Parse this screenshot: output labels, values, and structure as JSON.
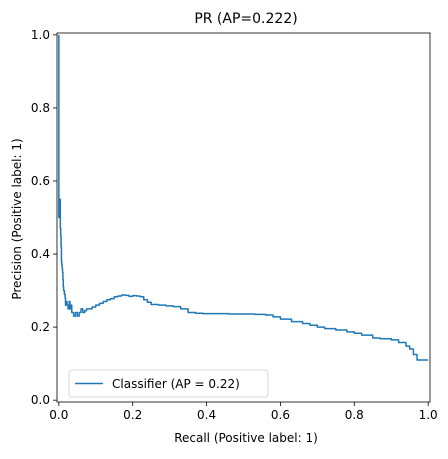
{
  "chart_data": {
    "type": "line",
    "title": "PR (AP=0.222)",
    "xlabel": "Recall (Positive label: 1)",
    "ylabel": "Precision (Positive label: 1)",
    "xlim": [
      -0.005,
      1.005
    ],
    "ylim": [
      -0.005,
      1.005
    ],
    "xticks": [
      {
        "value": 0.0,
        "label": "0.0"
      },
      {
        "value": 0.2,
        "label": "0.2"
      },
      {
        "value": 0.4,
        "label": "0.4"
      },
      {
        "value": 0.6,
        "label": "0.6"
      },
      {
        "value": 0.8,
        "label": "0.8"
      },
      {
        "value": 1.0,
        "label": "1.0"
      }
    ],
    "yticks": [
      {
        "value": 0.0,
        "label": "0.0"
      },
      {
        "value": 0.2,
        "label": "0.2"
      },
      {
        "value": 0.4,
        "label": "0.4"
      },
      {
        "value": 0.6,
        "label": "0.6"
      },
      {
        "value": 0.8,
        "label": "0.8"
      },
      {
        "value": 1.0,
        "label": "1.0"
      }
    ],
    "grid": false,
    "legend_position": "lower-left",
    "series": [
      {
        "name": "Classifier (AP = 0.22)",
        "color": "#1f77b4",
        "x": [
          0.0,
          0.0,
          0.003,
          0.003,
          0.004,
          0.005,
          0.006,
          0.007,
          0.008,
          0.009,
          0.01,
          0.011,
          0.012,
          0.013,
          0.015,
          0.017,
          0.018,
          0.02,
          0.022,
          0.025,
          0.028,
          0.03,
          0.033,
          0.035,
          0.04,
          0.045,
          0.05,
          0.055,
          0.06,
          0.065,
          0.07,
          0.075,
          0.08,
          0.09,
          0.1,
          0.11,
          0.12,
          0.13,
          0.14,
          0.15,
          0.16,
          0.17,
          0.18,
          0.19,
          0.2,
          0.21,
          0.22,
          0.23,
          0.24,
          0.25,
          0.27,
          0.29,
          0.31,
          0.33,
          0.35,
          0.37,
          0.39,
          0.42,
          0.46,
          0.5,
          0.53,
          0.56,
          0.58,
          0.6,
          0.63,
          0.66,
          0.68,
          0.7,
          0.72,
          0.75,
          0.78,
          0.8,
          0.82,
          0.85,
          0.87,
          0.9,
          0.92,
          0.94,
          0.95,
          0.96,
          0.97,
          0.99,
          1.0
        ],
        "y": [
          1.0,
          0.5,
          0.5,
          0.55,
          0.47,
          0.45,
          0.42,
          0.38,
          0.37,
          0.36,
          0.35,
          0.33,
          0.31,
          0.3,
          0.29,
          0.28,
          0.26,
          0.27,
          0.26,
          0.25,
          0.27,
          0.25,
          0.26,
          0.24,
          0.23,
          0.24,
          0.23,
          0.24,
          0.25,
          0.24,
          0.245,
          0.25,
          0.25,
          0.255,
          0.26,
          0.265,
          0.27,
          0.275,
          0.278,
          0.283,
          0.285,
          0.288,
          0.287,
          0.284,
          0.286,
          0.285,
          0.283,
          0.275,
          0.268,
          0.262,
          0.26,
          0.258,
          0.256,
          0.25,
          0.24,
          0.238,
          0.237,
          0.237,
          0.236,
          0.236,
          0.235,
          0.233,
          0.228,
          0.222,
          0.215,
          0.21,
          0.205,
          0.2,
          0.196,
          0.192,
          0.187,
          0.183,
          0.178,
          0.17,
          0.168,
          0.165,
          0.158,
          0.148,
          0.14,
          0.125,
          0.11,
          0.11,
          0.11
        ]
      }
    ]
  }
}
